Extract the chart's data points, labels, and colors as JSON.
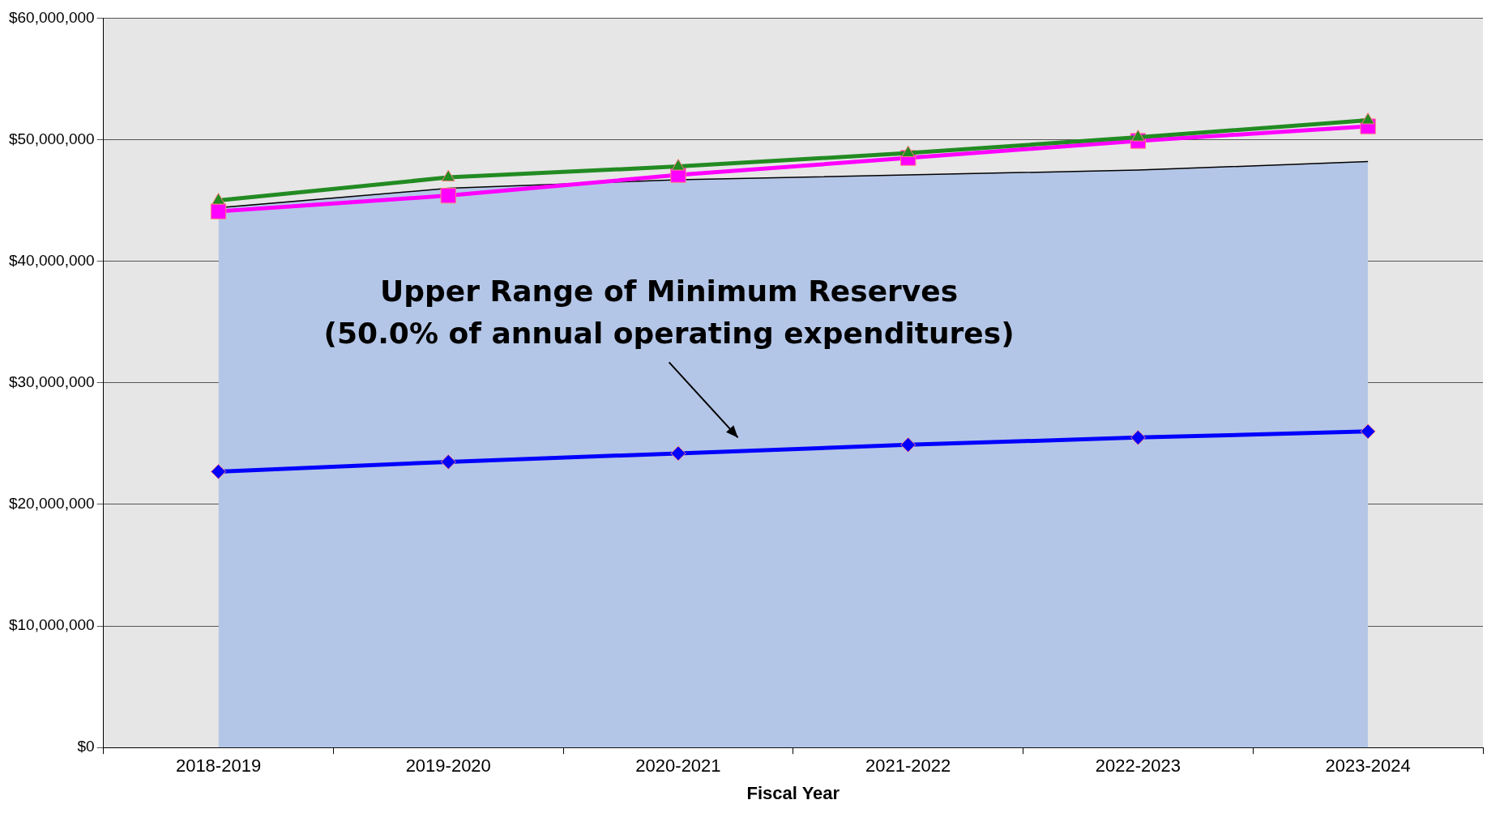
{
  "chart_data": {
    "type": "line",
    "xlabel": "Fiscal Year",
    "categories": [
      "2018-2019",
      "2019-2020",
      "2020-2021",
      "2021-2022",
      "2022-2023",
      "2023-2024"
    ],
    "series": [
      {
        "type": "area",
        "color": "#b4c6e7",
        "marker": "none",
        "values": [
          44400000.0,
          46000000.0,
          46700000.0,
          47100000.0,
          47500000.0,
          48200000.0
        ]
      },
      {
        "color": "#0000ff",
        "marker": "diamond",
        "values": [
          22700000.0,
          23500000.0,
          24200000.0,
          24900000.0,
          25500000.0,
          26000000.0
        ]
      },
      {
        "color": "#ff00ff",
        "marker": "square",
        "values": [
          44100000.0,
          45400000.0,
          47100000.0,
          48500000.0,
          49900000.0,
          51100000.0
        ]
      },
      {
        "color": "#228b22",
        "marker": "triangle",
        "values": [
          45000000.0,
          46900000.0,
          47800000.0,
          48900000.0,
          50200000.0,
          51600000.0
        ]
      }
    ],
    "ylim": [
      0,
      60000000
    ],
    "yticks": [
      {
        "value": 0,
        "label": "$0"
      },
      {
        "value": 10000000,
        "label": "$10,000,000"
      },
      {
        "value": 20000000,
        "label": "$20,000,000"
      },
      {
        "value": 30000000,
        "label": "$30,000,000"
      },
      {
        "value": 40000000,
        "label": "$40,000,000"
      },
      {
        "value": 50000000,
        "label": "$50,000,000"
      },
      {
        "value": 60000000,
        "label": "$60,000,000"
      }
    ],
    "grid": "y",
    "legend": false,
    "annotations": [
      "Upper Range of Minimum Reserves",
      "(50.0% of annual operating expenditures)"
    ]
  }
}
